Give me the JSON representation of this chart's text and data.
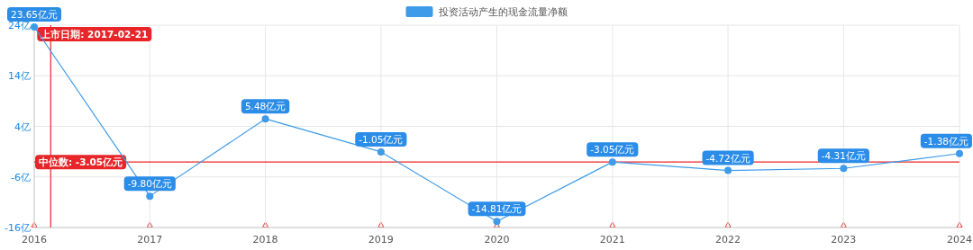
{
  "chart_data": {
    "type": "line",
    "legend": "top",
    "grid": true,
    "marker": "circle",
    "x": [
      "2016-12-31",
      "2017-12-31",
      "2018-12-31",
      "2019-12-31",
      "2020-12-31",
      "2021-12-31",
      "2022-12-31",
      "2023-12-31",
      "2024-12-31"
    ],
    "series": [
      {
        "name": "投资活动产生的现金流量净额",
        "color": "#3d9be9",
        "values": [
          23.65,
          -9.8,
          5.48,
          -1.05,
          -14.81,
          -3.05,
          -4.72,
          -4.31,
          -1.38
        ],
        "value_labels": [
          "23.65亿元",
          "-9.80亿元",
          "5.48亿元",
          "-1.05亿元",
          "-14.81亿元",
          "-3.05亿元",
          "-4.72亿元",
          "-4.31亿元",
          "-1.38亿元"
        ]
      }
    ],
    "xlim": [
      "2016-12-31",
      "2024-12-31"
    ],
    "xticks": [
      {
        "value": "2016-12-31",
        "label": "2016"
      },
      {
        "value": "2017-12-31",
        "label": "2017"
      },
      {
        "value": "2018-12-31",
        "label": "2018"
      },
      {
        "value": "2019-12-31",
        "label": "2019"
      },
      {
        "value": "2020-12-31",
        "label": "2020"
      },
      {
        "value": "2021-12-31",
        "label": "2021"
      },
      {
        "value": "2022-12-31",
        "label": "2022"
      },
      {
        "value": "2023-12-31",
        "label": "2023"
      },
      {
        "value": "2024-12-31",
        "label": "2024"
      }
    ],
    "ylim": [
      -16,
      24
    ],
    "yticks": [
      {
        "value": -16,
        "label": "-16亿"
      },
      {
        "value": -6,
        "label": "-6亿"
      },
      {
        "value": 4,
        "label": "4亿"
      },
      {
        "value": 14,
        "label": "14亿"
      },
      {
        "value": 24,
        "label": "24亿"
      }
    ],
    "ref_lines": [
      {
        "axis": "x",
        "value": "2017-02-21",
        "label": "上市日期: 2017-02-21",
        "color": "#e8262a"
      },
      {
        "axis": "y",
        "value": -3.05,
        "label": "中位数: -3.05亿元",
        "color": "#e8262a"
      }
    ]
  }
}
